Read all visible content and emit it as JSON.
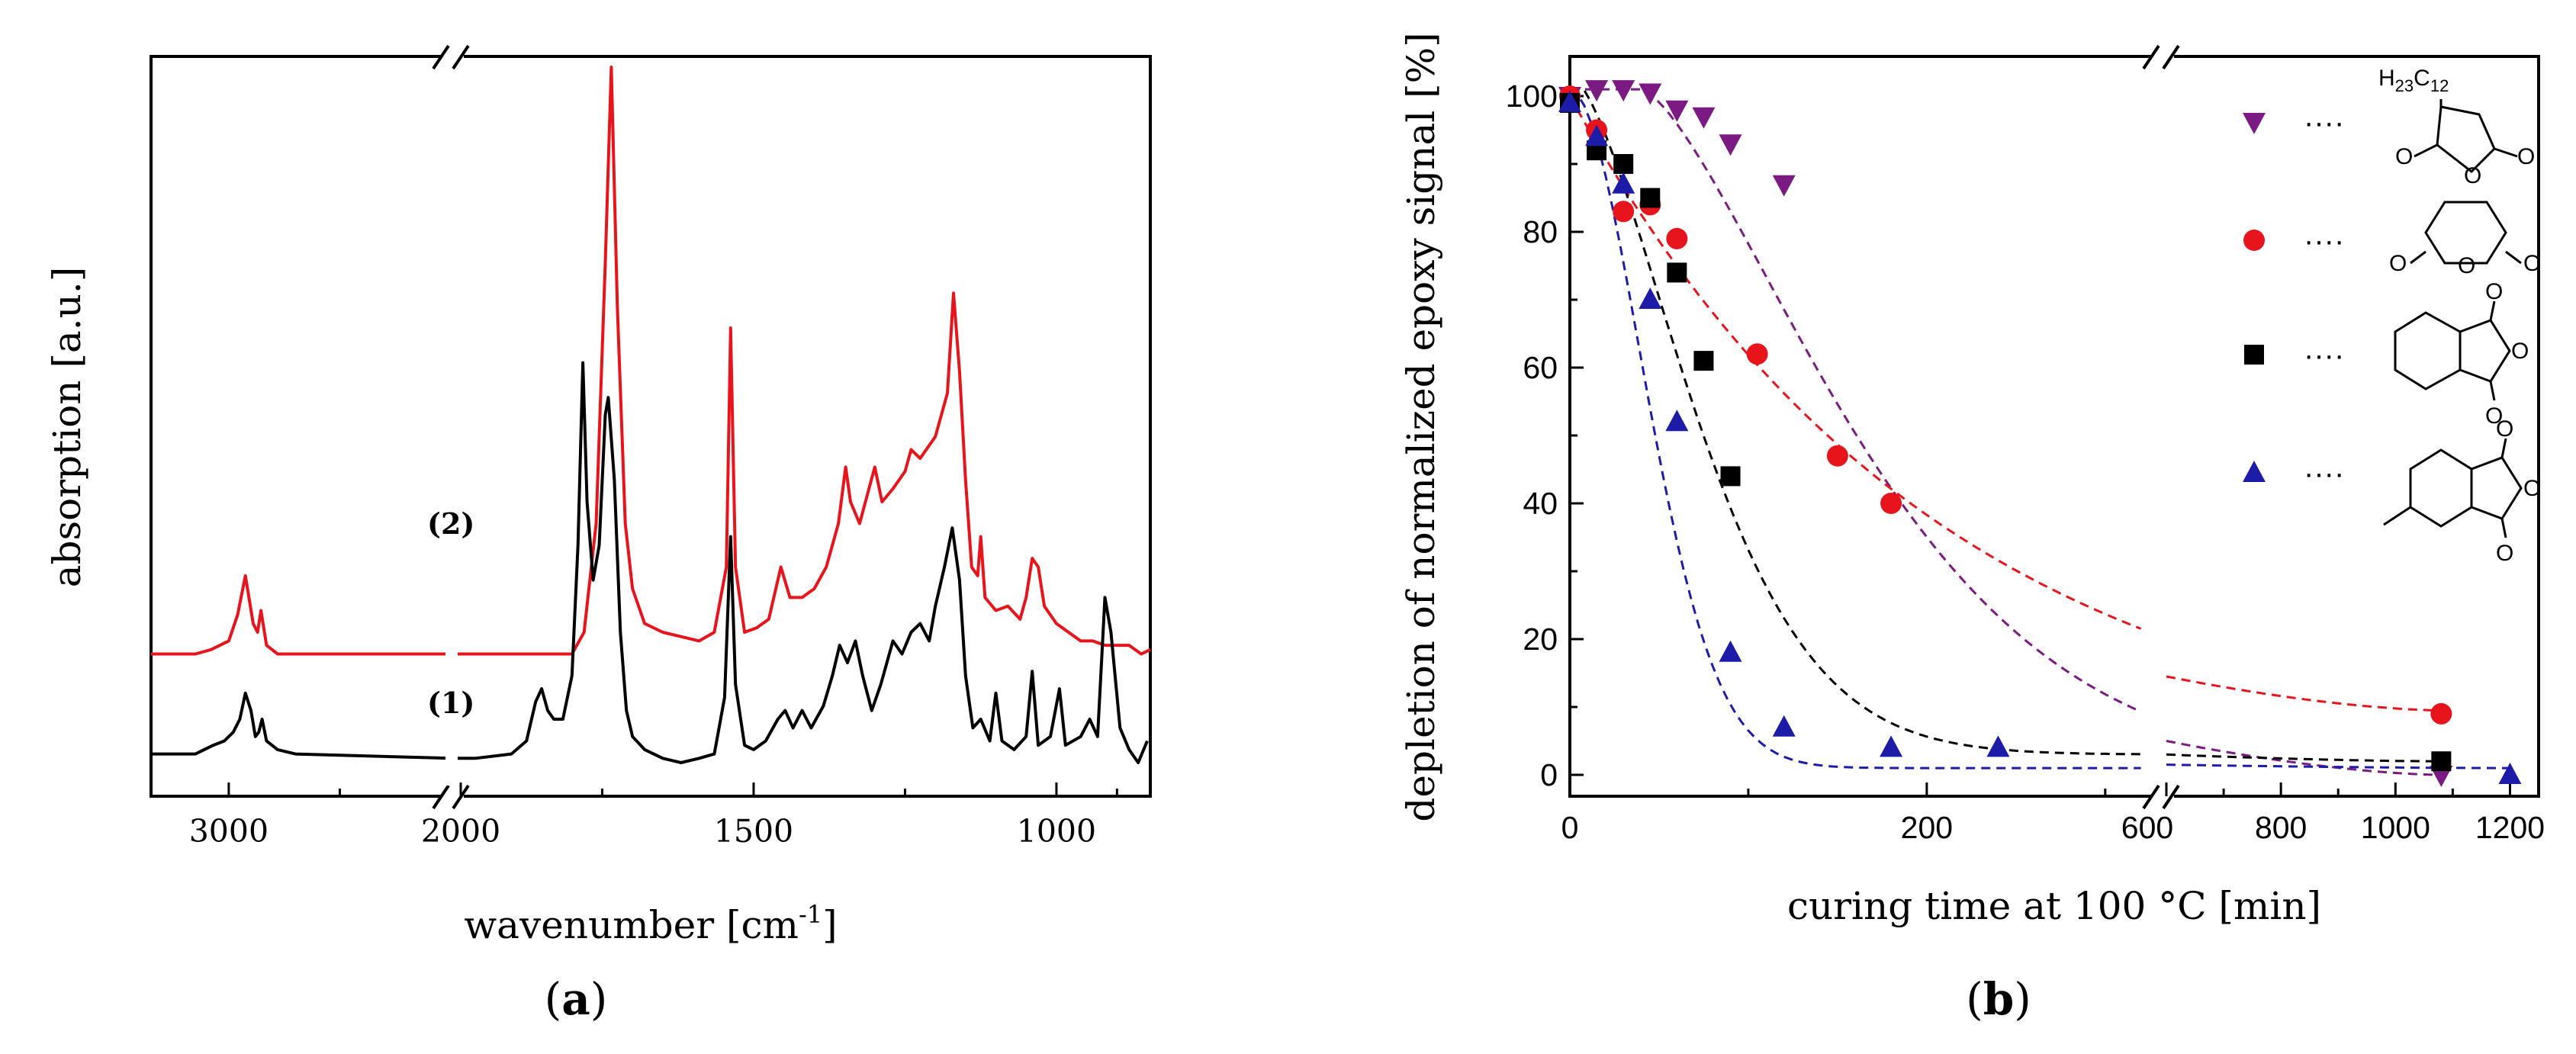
{
  "chart_data": [
    {
      "panel": "(a)",
      "type": "line",
      "xlabel": "wavenumber [cm",
      "xlabel_sup": "-1",
      "xlabel_end": "]",
      "ylabel": "absorption [a.u.]",
      "x_ticks": [
        "3000",
        "2000",
        "1500",
        "1000"
      ],
      "x_axis_break": true,
      "x_reversed": true,
      "series": [
        {
          "name": "(2)",
          "color": "#e8141c",
          "points": [
            [
              3350,
              0.25
            ],
            [
              3150,
              0.25
            ],
            [
              3080,
              0.26
            ],
            [
              3000,
              0.28
            ],
            [
              2960,
              0.34
            ],
            [
              2925,
              0.43
            ],
            [
              2890,
              0.32
            ],
            [
              2870,
              0.3
            ],
            [
              2855,
              0.35
            ],
            [
              2830,
              0.27
            ],
            [
              2780,
              0.25
            ],
            [
              2700,
              0.25
            ],
            [
              2000,
              0.25
            ],
            [
              1960,
              0.25
            ],
            [
              1900,
              0.25
            ],
            [
              1850,
              0.25
            ],
            [
              1800,
              0.25
            ],
            [
              1780,
              0.3
            ],
            [
              1760,
              0.55
            ],
            [
              1745,
              1.15
            ],
            [
              1735,
              1.6
            ],
            [
              1725,
              1.05
            ],
            [
              1712,
              0.55
            ],
            [
              1700,
              0.4
            ],
            [
              1680,
              0.32
            ],
            [
              1650,
              0.3
            ],
            [
              1620,
              0.29
            ],
            [
              1590,
              0.28
            ],
            [
              1565,
              0.3
            ],
            [
              1545,
              0.45
            ],
            [
              1538,
              1.0
            ],
            [
              1530,
              0.45
            ],
            [
              1515,
              0.3
            ],
            [
              1495,
              0.31
            ],
            [
              1475,
              0.33
            ],
            [
              1455,
              0.45
            ],
            [
              1440,
              0.38
            ],
            [
              1420,
              0.38
            ],
            [
              1400,
              0.4
            ],
            [
              1380,
              0.45
            ],
            [
              1360,
              0.55
            ],
            [
              1348,
              0.68
            ],
            [
              1340,
              0.6
            ],
            [
              1325,
              0.55
            ],
            [
              1300,
              0.68
            ],
            [
              1288,
              0.6
            ],
            [
              1270,
              0.63
            ],
            [
              1250,
              0.67
            ],
            [
              1240,
              0.72
            ],
            [
              1225,
              0.7
            ],
            [
              1200,
              0.75
            ],
            [
              1180,
              0.85
            ],
            [
              1170,
              1.08
            ],
            [
              1160,
              0.9
            ],
            [
              1150,
              0.65
            ],
            [
              1140,
              0.45
            ],
            [
              1130,
              0.43
            ],
            [
              1125,
              0.52
            ],
            [
              1118,
              0.38
            ],
            [
              1100,
              0.35
            ],
            [
              1080,
              0.36
            ],
            [
              1060,
              0.33
            ],
            [
              1050,
              0.38
            ],
            [
              1040,
              0.47
            ],
            [
              1030,
              0.45
            ],
            [
              1020,
              0.36
            ],
            [
              1000,
              0.32
            ],
            [
              980,
              0.3
            ],
            [
              960,
              0.28
            ],
            [
              940,
              0.28
            ],
            [
              920,
              0.27
            ],
            [
              900,
              0.27
            ],
            [
              880,
              0.27
            ],
            [
              860,
              0.25
            ],
            [
              845,
              0.26
            ]
          ]
        },
        {
          "name": "(1)",
          "color": "#000000",
          "points": [
            [
              3350,
              0.02
            ],
            [
              3150,
              0.02
            ],
            [
              3070,
              0.04
            ],
            [
              3020,
              0.05
            ],
            [
              2980,
              0.07
            ],
            [
              2950,
              0.1
            ],
            [
              2925,
              0.16
            ],
            [
              2900,
              0.12
            ],
            [
              2880,
              0.06
            ],
            [
              2865,
              0.07
            ],
            [
              2850,
              0.1
            ],
            [
              2830,
              0.05
            ],
            [
              2780,
              0.03
            ],
            [
              2700,
              0.02
            ],
            [
              2000,
              0.01
            ],
            [
              1960,
              0.01
            ],
            [
              1900,
              0.02
            ],
            [
              1875,
              0.05
            ],
            [
              1860,
              0.14
            ],
            [
              1850,
              0.17
            ],
            [
              1840,
              0.12
            ],
            [
              1830,
              0.1
            ],
            [
              1815,
              0.1
            ],
            [
              1800,
              0.2
            ],
            [
              1790,
              0.5
            ],
            [
              1782,
              0.92
            ],
            [
              1775,
              0.6
            ],
            [
              1765,
              0.42
            ],
            [
              1755,
              0.5
            ],
            [
              1745,
              0.8
            ],
            [
              1740,
              0.84
            ],
            [
              1730,
              0.65
            ],
            [
              1720,
              0.3
            ],
            [
              1710,
              0.12
            ],
            [
              1700,
              0.06
            ],
            [
              1680,
              0.03
            ],
            [
              1650,
              0.01
            ],
            [
              1620,
              0.0
            ],
            [
              1590,
              0.01
            ],
            [
              1565,
              0.02
            ],
            [
              1548,
              0.15
            ],
            [
              1538,
              0.52
            ],
            [
              1530,
              0.18
            ],
            [
              1515,
              0.04
            ],
            [
              1500,
              0.03
            ],
            [
              1480,
              0.05
            ],
            [
              1460,
              0.1
            ],
            [
              1448,
              0.12
            ],
            [
              1435,
              0.08
            ],
            [
              1420,
              0.12
            ],
            [
              1405,
              0.08
            ],
            [
              1385,
              0.13
            ],
            [
              1370,
              0.2
            ],
            [
              1358,
              0.27
            ],
            [
              1345,
              0.23
            ],
            [
              1332,
              0.28
            ],
            [
              1320,
              0.2
            ],
            [
              1305,
              0.12
            ],
            [
              1290,
              0.18
            ],
            [
              1270,
              0.28
            ],
            [
              1255,
              0.25
            ],
            [
              1240,
              0.3
            ],
            [
              1225,
              0.32
            ],
            [
              1210,
              0.28
            ],
            [
              1200,
              0.36
            ],
            [
              1185,
              0.45
            ],
            [
              1172,
              0.54
            ],
            [
              1160,
              0.42
            ],
            [
              1150,
              0.2
            ],
            [
              1138,
              0.08
            ],
            [
              1125,
              0.1
            ],
            [
              1110,
              0.05
            ],
            [
              1100,
              0.16
            ],
            [
              1090,
              0.05
            ],
            [
              1070,
              0.03
            ],
            [
              1050,
              0.06
            ],
            [
              1040,
              0.21
            ],
            [
              1030,
              0.04
            ],
            [
              1010,
              0.06
            ],
            [
              995,
              0.17
            ],
            [
              985,
              0.04
            ],
            [
              960,
              0.06
            ],
            [
              945,
              0.1
            ],
            [
              932,
              0.06
            ],
            [
              920,
              0.38
            ],
            [
              910,
              0.3
            ],
            [
              895,
              0.08
            ],
            [
              880,
              0.03
            ],
            [
              865,
              0.0
            ],
            [
              850,
              0.05
            ]
          ]
        }
      ]
    },
    {
      "panel": "(b)",
      "type": "scatter",
      "xlabel": "curing time at 100 °C [min]",
      "ylabel": "depletion of normalized epoxy signal [%]",
      "ylim": [
        0,
        105
      ],
      "y_ticks": [
        "0",
        "20",
        "40",
        "60",
        "80",
        "100"
      ],
      "x_ticks": [
        "0",
        "200",
        "600",
        "800",
        "1000",
        "1200"
      ],
      "x_axis_break": true,
      "legend_position": "right",
      "series": [
        {
          "name": "dodecenyl succinic anhydride",
          "formula_label": "H23C12",
          "marker": "triangle-down",
          "color": "#7a1a82",
          "points": [
            [
              0,
              100
            ],
            [
              15,
              101
            ],
            [
              30,
              101
            ],
            [
              45,
              100.5
            ],
            [
              60,
              98
            ],
            [
              75,
              97
            ],
            [
              90,
              93
            ],
            [
              120,
              87
            ],
            [
              1080,
              0
            ]
          ],
          "fit_color": "#7a1a82"
        },
        {
          "name": "glutaric anhydride",
          "marker": "circle",
          "color": "#e8141c",
          "points": [
            [
              0,
              100
            ],
            [
              15,
              95
            ],
            [
              30,
              83
            ],
            [
              45,
              84
            ],
            [
              60,
              79
            ],
            [
              105,
              62
            ],
            [
              150,
              47
            ],
            [
              180,
              40
            ],
            [
              1080,
              9
            ]
          ],
          "fit_color": "#e8141c"
        },
        {
          "name": "hexahydrophthalic anhydride",
          "marker": "square",
          "color": "#000000",
          "points": [
            [
              0,
              99
            ],
            [
              15,
              92
            ],
            [
              30,
              90
            ],
            [
              45,
              85
            ],
            [
              60,
              74
            ],
            [
              75,
              61
            ],
            [
              90,
              44
            ],
            [
              1080,
              2
            ]
          ],
          "fit_color": "#000000"
        },
        {
          "name": "methylhexahydrophthalic anhydride",
          "marker": "triangle-up",
          "color": "#1c1ca8",
          "points": [
            [
              0,
              99
            ],
            [
              15,
              94
            ],
            [
              30,
              87
            ],
            [
              45,
              70
            ],
            [
              60,
              52
            ],
            [
              90,
              18
            ],
            [
              120,
              7
            ],
            [
              180,
              4
            ],
            [
              240,
              4
            ],
            [
              1200,
              0
            ]
          ],
          "fit_color": "#1c1ca8"
        }
      ],
      "legend_dots": "····"
    }
  ],
  "labels": {
    "a": "a",
    "b": "b",
    "h23c12_main": "H",
    "h23c12_sub1": "23",
    "h23c12_c": "C",
    "h23c12_sub2": "12"
  }
}
